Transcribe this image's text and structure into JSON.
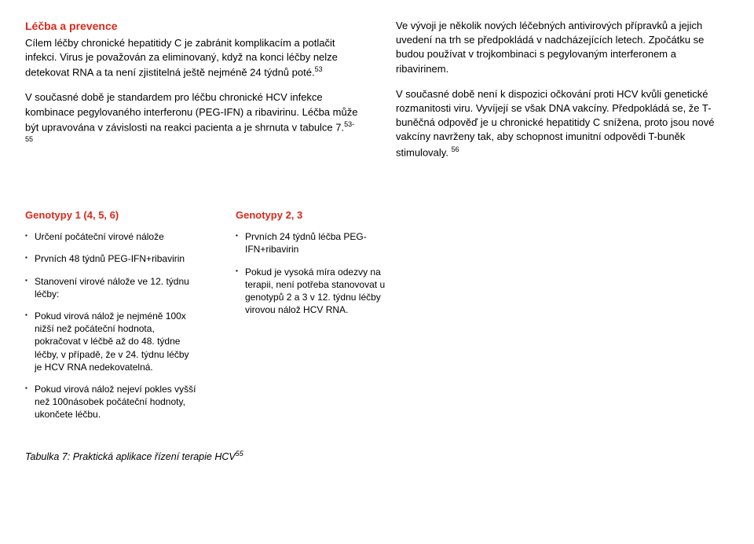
{
  "top": {
    "left": {
      "title": "Léčba a prevence",
      "p1": "Cílem léčby chronické hepatitidy C je zabránit komplikacím a potlačit infekci. Virus je považován za eliminovaný, když na konci léčby nelze detekovat RNA a ta není zjistitelná ještě nejméně 24 týdnů poté.",
      "p1_sup": "53",
      "p2": "V současné době je standardem pro léčbu chronické HCV infekce kombinace pegylovaného interferonu (PEG-IFN) a ribavirinu. Léčba může být upravována v závislosti na reakci pacienta a je shrnuta v tabulce 7.",
      "p2_sup": "53-55"
    },
    "right": {
      "p1": "Ve vývoji je několik nových léčebných antivirových přípravků a jejich uvedení na trh se předpokládá v nadcházejících letech. Zpočátku se budou používat v trojkombinaci s pegylovaným interferonem a ribavirinem.",
      "p2": "V současné době není k dispozici očkování proti HCV kvůli genetické rozmanitosti viru. Vyvíjejí se však DNA vakcíny. Předpokládá se, že T-buněčná odpověď je u chronické hepatitidy C snížena, proto jsou nové vakcíny navrženy tak, aby schopnost imunitní odpovědi T-buněk stimulovaly. ",
      "p2_sup": "56"
    }
  },
  "genotypes": {
    "col1": {
      "title": "Genotypy 1 (4, 5, 6)",
      "items": [
        "Určení počáteční virové nálože",
        "Prvních 48 týdnů PEG-IFN+ribavirin",
        "Stanovení virové nálože ve 12. týdnu léčby:",
        "Pokud virová nálož je nejméně 100x nižší než počáteční hodnota, pokračovat v léčbě až do 48. týdne léčby, v případě, že v 24. týdnu léčby je HCV RNA nedekovatelná.",
        "Pokud virová nálož nejeví pokles vyšší než 100násobek počáteční hodnoty, ukončete léčbu."
      ]
    },
    "col2": {
      "title": "Genotypy 2, 3",
      "items": [
        "Prvních 24 týdnů léčba PEG-IFN+ribavirin",
        "Pokud je vysoká míra odezvy na terapii, není potřeba stanovovat u genotypů 2 a 3 v 12. týdnu léčby virovou nálož HCV RNA."
      ]
    }
  },
  "caption": {
    "text": "Tabulka 7: Praktická aplikace řízení terapie HCV",
    "sup": "55"
  }
}
